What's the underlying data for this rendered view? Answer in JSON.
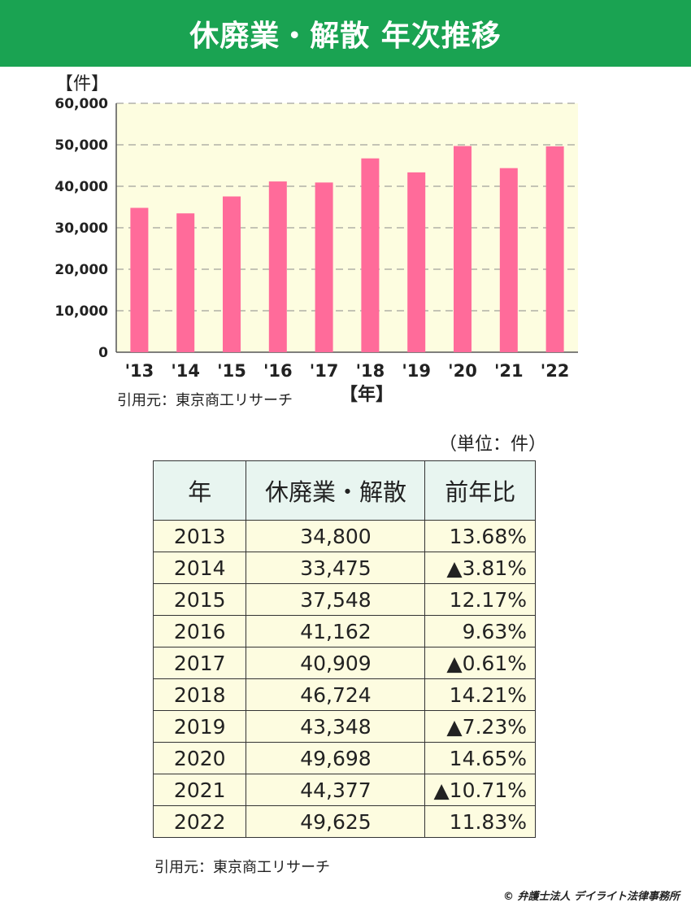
{
  "header": {
    "title": "休廃業・解散 年次推移"
  },
  "chart_data": {
    "type": "bar",
    "ylabel": "【件】",
    "xlabel": "【年】",
    "categories": [
      "'13",
      "'14",
      "'15",
      "'16",
      "'17",
      "'18",
      "'19",
      "'20",
      "'21",
      "'22"
    ],
    "values": [
      34800,
      33475,
      37548,
      41162,
      40909,
      46724,
      43348,
      49698,
      44377,
      49625
    ],
    "ylim": [
      0,
      60000
    ],
    "yticks": [
      0,
      10000,
      20000,
      30000,
      40000,
      50000,
      60000
    ],
    "ytick_labels": [
      "0",
      "10,000",
      "20,000",
      "30,000",
      "40,000",
      "50,000",
      "60,000"
    ],
    "grid": true,
    "bar_color": "#ff6b9a",
    "plot_bg": "#fdfde0"
  },
  "chart_source": "引用元：東京商工リサーチ",
  "table": {
    "unit_note": "（単位：件）",
    "headers": [
      "年",
      "休廃業・解散",
      "前年比"
    ],
    "rows": [
      [
        "2013",
        "34,800",
        "13.68%"
      ],
      [
        "2014",
        "33,475",
        "▲3.81%"
      ],
      [
        "2015",
        "37,548",
        "12.17%"
      ],
      [
        "2016",
        "41,162",
        "9.63%"
      ],
      [
        "2017",
        "40,909",
        "▲0.61%"
      ],
      [
        "2018",
        "46,724",
        "14.21%"
      ],
      [
        "2019",
        "43,348",
        "▲7.23%"
      ],
      [
        "2020",
        "49,698",
        "14.65%"
      ],
      [
        "2021",
        "44,377",
        "▲10.71%"
      ],
      [
        "2022",
        "49,625",
        "11.83%"
      ]
    ]
  },
  "table_source": "引用元：東京商工リサーチ",
  "copyright": "© 弁護士法人 デイライト法律事務所"
}
